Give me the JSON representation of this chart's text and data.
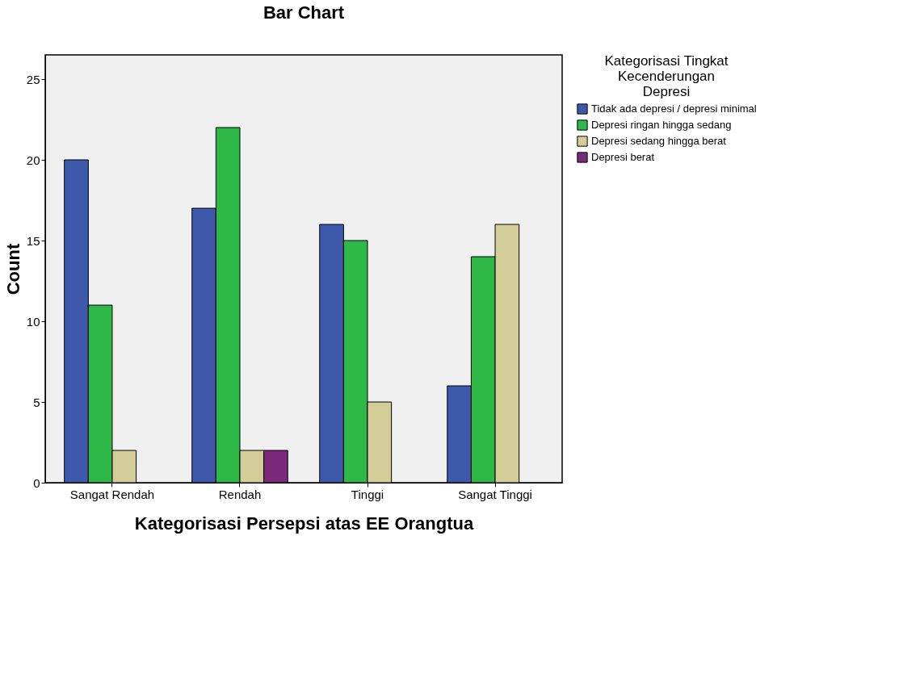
{
  "chart_data": {
    "type": "bar",
    "title": "Bar Chart",
    "xlabel": "Kategorisasi Persepsi atas EE Orangtua",
    "ylabel": "Count",
    "legend_title": "Kategorisasi Tingkat Kecenderungan Depresi",
    "categories": [
      "Sangat Rendah",
      "Rendah",
      "Tinggi",
      "Sangat Tinggi"
    ],
    "series": [
      {
        "name": "Tidak ada depresi / depresi minimal",
        "color": "#3e58ac",
        "values": [
          20,
          17,
          16,
          6
        ]
      },
      {
        "name": "Depresi ringan hingga sedang",
        "color": "#2eb848",
        "values": [
          11,
          22,
          15,
          14
        ]
      },
      {
        "name": "Depresi sedang hingga berat",
        "color": "#d3ce97",
        "values": [
          2,
          2,
          5,
          16
        ]
      },
      {
        "name": "Depresi berat",
        "color": "#7b2a7b",
        "values": [
          null,
          2,
          null,
          null
        ]
      }
    ],
    "ylim": [
      0,
      26.5
    ],
    "yticks": [
      0,
      5,
      10,
      15,
      20,
      25
    ],
    "grid": false,
    "legend": "top right"
  }
}
